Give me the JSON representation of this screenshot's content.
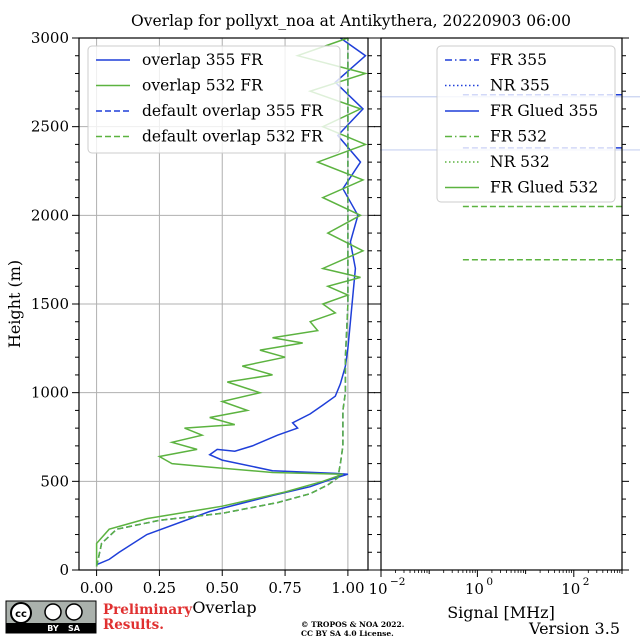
{
  "chart_data": {
    "type": "line",
    "title": "Overlap for pollyxt_noa at Antikythera, 20220903 06:00",
    "panels": [
      {
        "id": "overlap",
        "xlabel": "Overlap",
        "ylabel": "Height (m)",
        "xlim": [
          -0.07,
          1.08
        ],
        "ylim": [
          0,
          3000
        ],
        "xticks": [
          0.0,
          0.25,
          0.5,
          0.75,
          1.0
        ],
        "xtick_labels": [
          "0.00",
          "0.25",
          "0.50",
          "0.75",
          "1.00"
        ],
        "yticks": [
          0,
          500,
          1000,
          1500,
          2000,
          2500,
          3000
        ],
        "ytick_labels": [
          "0",
          "500",
          "1000",
          "1500",
          "2000",
          "2500",
          "3000"
        ],
        "grid": true,
        "legend_position": "top-right",
        "series": [
          {
            "name": "overlap 355 FR",
            "color": "#1f3fd9",
            "style": "solid",
            "points": [
              [
                0.0,
                30
              ],
              [
                0.05,
                60
              ],
              [
                0.09,
                100
              ],
              [
                0.2,
                200
              ],
              [
                0.45,
                330
              ],
              [
                0.7,
                420
              ],
              [
                0.85,
                470
              ],
              [
                0.93,
                510
              ],
              [
                1.0,
                540
              ],
              [
                0.95,
                545
              ],
              [
                0.7,
                560
              ],
              [
                0.5,
                620
              ],
              [
                0.45,
                650
              ],
              [
                0.48,
                680
              ],
              [
                0.55,
                670
              ],
              [
                0.62,
                700
              ],
              [
                0.72,
                760
              ],
              [
                0.8,
                800
              ],
              [
                0.78,
                830
              ],
              [
                0.85,
                880
              ],
              [
                0.9,
                930
              ],
              [
                0.95,
                980
              ],
              [
                0.97,
                1050
              ],
              [
                0.99,
                1150
              ],
              [
                1.0,
                1250
              ],
              [
                1.01,
                1400
              ],
              [
                1.02,
                1550
              ],
              [
                1.03,
                1700
              ],
              [
                1.01,
                1850
              ],
              [
                1.04,
                2000
              ],
              [
                0.98,
                2150
              ],
              [
                1.05,
                2300
              ],
              [
                0.96,
                2450
              ],
              [
                1.06,
                2600
              ],
              [
                0.95,
                2750
              ],
              [
                1.07,
                2900
              ],
              [
                0.97,
                3000
              ]
            ]
          },
          {
            "name": "overlap 532 FR",
            "color": "#5cb340",
            "style": "solid",
            "points": [
              [
                0.0,
                20
              ],
              [
                0.0,
                150
              ],
              [
                0.05,
                230
              ],
              [
                0.2,
                290
              ],
              [
                0.5,
                360
              ],
              [
                0.75,
                440
              ],
              [
                0.9,
                500
              ],
              [
                0.98,
                540
              ],
              [
                0.7,
                550
              ],
              [
                0.45,
                580
              ],
              [
                0.3,
                600
              ],
              [
                0.25,
                640
              ],
              [
                0.4,
                680
              ],
              [
                0.3,
                720
              ],
              [
                0.42,
                760
              ],
              [
                0.35,
                800
              ],
              [
                0.55,
                820
              ],
              [
                0.45,
                860
              ],
              [
                0.6,
                900
              ],
              [
                0.5,
                950
              ],
              [
                0.65,
                1000
              ],
              [
                0.52,
                1060
              ],
              [
                0.7,
                1100
              ],
              [
                0.58,
                1150
              ],
              [
                0.75,
                1200
              ],
              [
                0.65,
                1240
              ],
              [
                0.82,
                1280
              ],
              [
                0.7,
                1310
              ],
              [
                0.88,
                1350
              ],
              [
                0.85,
                1400
              ],
              [
                0.95,
                1450
              ],
              [
                0.9,
                1500
              ],
              [
                1.0,
                1550
              ],
              [
                0.92,
                1600
              ],
              [
                1.05,
                1650
              ],
              [
                0.9,
                1700
              ],
              [
                1.06,
                1800
              ],
              [
                0.92,
                1900
              ],
              [
                1.05,
                2000
              ],
              [
                0.9,
                2100
              ],
              [
                1.06,
                2200
              ],
              [
                0.88,
                2300
              ],
              [
                1.07,
                2400
              ],
              [
                0.9,
                2500
              ],
              [
                1.05,
                2600
              ],
              [
                0.85,
                2700
              ],
              [
                1.07,
                2800
              ],
              [
                0.8,
                2900
              ],
              [
                1.0,
                3000
              ]
            ]
          },
          {
            "name": "default overlap 355 FR",
            "color": "#1f3fd9",
            "style": "dashed",
            "points": [
              [
                0.0,
                20
              ],
              [
                0.02,
                150
              ],
              [
                0.08,
                230
              ],
              [
                0.25,
                280
              ],
              [
                0.5,
                320
              ],
              [
                0.72,
                380
              ],
              [
                0.85,
                430
              ],
              [
                0.92,
                480
              ],
              [
                0.96,
                520
              ],
              [
                0.97,
                600
              ],
              [
                0.98,
                700
              ],
              [
                0.98,
                800
              ],
              [
                0.98,
                900
              ],
              [
                0.99,
                1000
              ],
              [
                0.99,
                1200
              ],
              [
                1.0,
                1500
              ],
              [
                1.0,
                2000
              ],
              [
                1.0,
                2500
              ],
              [
                1.0,
                3000
              ]
            ]
          },
          {
            "name": "default overlap 532 FR",
            "color": "#5cb340",
            "style": "dashed",
            "points": [
              [
                0.0,
                20
              ],
              [
                0.02,
                150
              ],
              [
                0.08,
                230
              ],
              [
                0.25,
                280
              ],
              [
                0.5,
                320
              ],
              [
                0.72,
                380
              ],
              [
                0.85,
                430
              ],
              [
                0.92,
                480
              ],
              [
                0.96,
                520
              ],
              [
                0.97,
                600
              ],
              [
                0.98,
                700
              ],
              [
                0.98,
                800
              ],
              [
                0.98,
                900
              ],
              [
                0.99,
                1000
              ],
              [
                0.99,
                1200
              ],
              [
                1.0,
                1500
              ],
              [
                1.0,
                2000
              ],
              [
                1.0,
                2500
              ],
              [
                1.0,
                3000
              ]
            ]
          }
        ]
      },
      {
        "id": "signal",
        "xlabel": "Signal [MHz]",
        "xscale": "log",
        "xlim": [
          0.01,
          1000
        ],
        "ylim": [
          0,
          3000
        ],
        "xticks": [
          0.01,
          1,
          100
        ],
        "xtick_labels": [
          "10",
          "10",
          "10"
        ],
        "xtick_exponents": [
          "−2",
          "0",
          "2"
        ],
        "grid": false,
        "legend_position": "top-right",
        "series": [
          {
            "name": "FR 355",
            "color": "#1f3fd9",
            "style": "dashdot",
            "points": [
              [
                0.5,
                2680
              ],
              [
                1000,
                2680
              ]
            ]
          },
          {
            "name": "NR 355",
            "color": "#1f3fd9",
            "style": "dotted",
            "points": [
              [
                0.5,
                2380
              ],
              [
                1000,
                2380
              ]
            ]
          },
          {
            "name": "FR Glued 355",
            "color": "#1f3fd9",
            "style": "solid",
            "points": []
          },
          {
            "name": "FR 532",
            "color": "#5cb340",
            "style": "dashdot",
            "points": [
              [
                0.5,
                2050
              ],
              [
                1000,
                2050
              ]
            ]
          },
          {
            "name": "NR 532",
            "color": "#5cb340",
            "style": "dotted",
            "points": [
              [
                0.5,
                1750
              ],
              [
                1000,
                1750
              ]
            ]
          },
          {
            "name": "FR Glued 532",
            "color": "#5cb340",
            "style": "solid",
            "points": []
          }
        ]
      }
    ]
  },
  "footer": {
    "license_badge": "CC BY SA",
    "license_parts": [
      "cc",
      "BY",
      "SA"
    ],
    "preliminary_line1": "Preliminary",
    "preliminary_line2": "Results.",
    "copyright_line1": "© TROPOS & NOA 2022.",
    "copyright_line2": "CC BY SA 4.0 License.",
    "version": "Version 3.5",
    "preliminary_color": "#e03030"
  }
}
